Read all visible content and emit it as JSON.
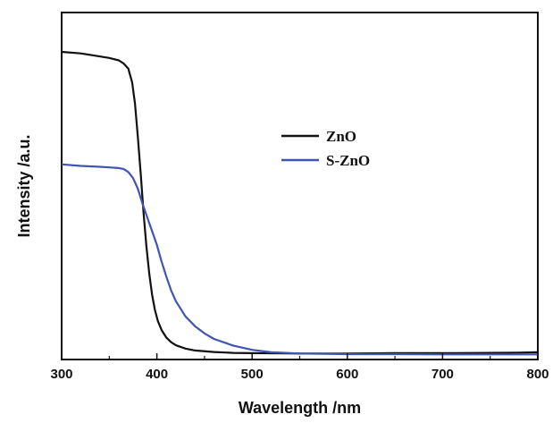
{
  "chart_data": {
    "type": "line",
    "xlabel": "Wavelength /nm",
    "ylabel": "Intensity /a.u.",
    "xlim": [
      300,
      800
    ],
    "ylim": [
      0,
      1
    ],
    "x_ticks": [
      "300",
      "400",
      "500",
      "600",
      "700",
      "800"
    ],
    "y_ticks_shown": false,
    "grid": false,
    "legend_position": "center",
    "series": [
      {
        "name": "ZnO",
        "color": "#111111",
        "x": [
          300,
          320,
          340,
          350,
          360,
          365,
          370,
          374,
          377,
          380,
          383,
          386,
          389,
          392,
          395,
          398,
          401,
          405,
          410,
          415,
          420,
          430,
          440,
          460,
          480,
          500,
          550,
          600,
          650,
          700,
          750,
          780,
          800
        ],
        "y": [
          1.0,
          0.995,
          0.985,
          0.98,
          0.972,
          0.962,
          0.945,
          0.9,
          0.83,
          0.72,
          0.6,
          0.47,
          0.36,
          0.27,
          0.2,
          0.15,
          0.115,
          0.085,
          0.06,
          0.045,
          0.035,
          0.024,
          0.018,
          0.013,
          0.01,
          0.009,
          0.008,
          0.008,
          0.009,
          0.009,
          0.01,
          0.011,
          0.012
        ]
      },
      {
        "name": "S-ZnO",
        "color": "#3f55b0",
        "x": [
          300,
          320,
          340,
          350,
          360,
          365,
          370,
          375,
          380,
          385,
          390,
          395,
          400,
          405,
          410,
          415,
          420,
          430,
          440,
          450,
          460,
          480,
          500,
          520,
          550,
          600,
          650,
          700,
          750,
          800
        ],
        "y": [
          0.63,
          0.625,
          0.622,
          0.62,
          0.618,
          0.615,
          0.605,
          0.585,
          0.55,
          0.5,
          0.455,
          0.41,
          0.365,
          0.31,
          0.26,
          0.215,
          0.18,
          0.13,
          0.098,
          0.074,
          0.056,
          0.034,
          0.02,
          0.012,
          0.008,
          0.006,
          0.006,
          0.005,
          0.005,
          0.005
        ]
      }
    ]
  }
}
